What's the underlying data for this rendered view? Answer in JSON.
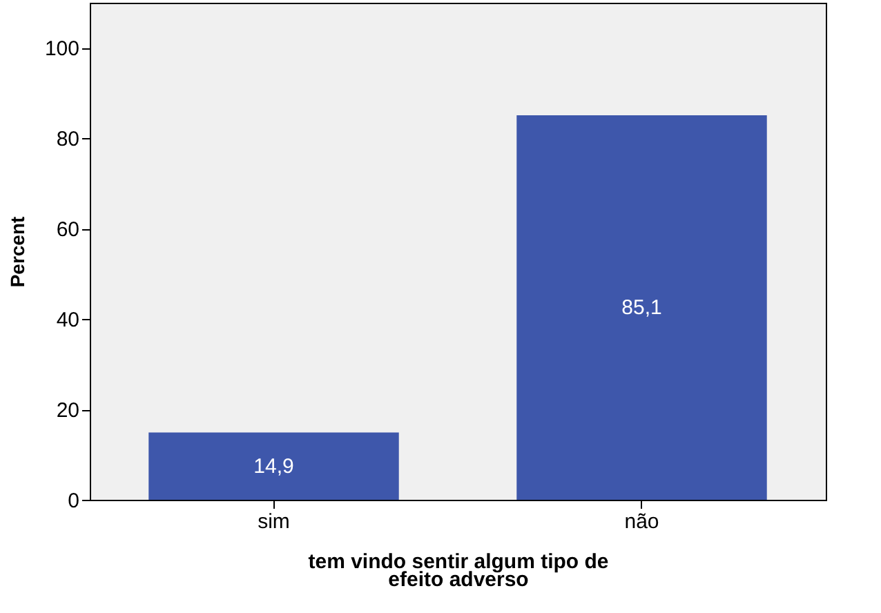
{
  "chart_data": {
    "type": "bar",
    "xlabel": "tem vindo sentir algum tipo de efeito adverso",
    "ylabel": "Percent",
    "categories": [
      "sim",
      "não"
    ],
    "values": [
      14.9,
      85.1
    ],
    "value_labels": [
      "14,9",
      "85,1"
    ],
    "color": "#3e57ab",
    "ylim": [
      0,
      110
    ],
    "yticks": [
      0,
      20,
      40,
      60,
      80,
      100
    ],
    "grid": false
  }
}
